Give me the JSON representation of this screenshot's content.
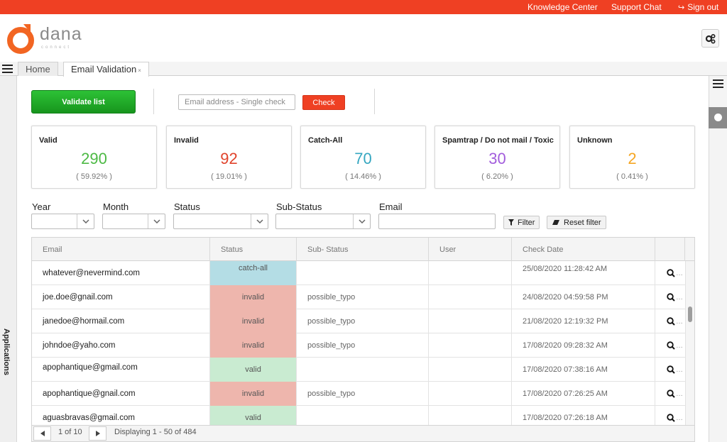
{
  "topbar": {
    "knowledge_center": "Knowledge Center",
    "support_chat": "Support Chat",
    "sign_out": "Sign out",
    "color": "#ef4023"
  },
  "logo": {
    "name": "dana",
    "tagline": "connect"
  },
  "tabs": [
    {
      "label": "Home",
      "active": false
    },
    {
      "label": "Email Validation",
      "active": true,
      "close": "×"
    }
  ],
  "sidebar": {
    "applications_label": "Applications"
  },
  "actions": {
    "validate_label": "Validate list",
    "single_placeholder": "Email address - Single check",
    "check_label": "Check"
  },
  "cards": [
    {
      "title": "Valid",
      "value": "290",
      "pct": "( 59.92% )",
      "color": "#4cb944"
    },
    {
      "title": "Invalid",
      "value": "92",
      "pct": "( 19.01% )",
      "color": "#e0432b"
    },
    {
      "title": "Catch-All",
      "value": "70",
      "pct": "( 14.46% )",
      "color": "#36a7c1"
    },
    {
      "title": "Spamtrap / Do not mail / Toxic",
      "value": "30",
      "pct": "( 6.20% )",
      "color": "#a25ddc"
    },
    {
      "title": "Unknown",
      "value": "2",
      "pct": "( 0.41% )",
      "color": "#f5a623"
    }
  ],
  "filters": {
    "year_label": "Year",
    "month_label": "Month",
    "status_label": "Status",
    "substatus_label": "Sub-Status",
    "email_label": "Email",
    "filter_button": "Filter",
    "reset_button": "Reset filter"
  },
  "grid": {
    "columns": [
      "Email",
      "Status",
      "Sub- Status",
      "User",
      "Check Date"
    ],
    "rows": [
      {
        "email": "whatever@nevermind.com",
        "status": "catch-all",
        "sub_status": "",
        "user": "",
        "date": "25/08/2020 11:28:42 AM"
      },
      {
        "email": "joe.doe@gnail.com",
        "status": "invalid",
        "sub_status": "possible_typo",
        "user": "",
        "date": "24/08/2020 04:59:58 PM"
      },
      {
        "email": "janedoe@hormail.com",
        "status": "invalid",
        "sub_status": "possible_typo",
        "user": "",
        "date": "21/08/2020 12:19:32 PM"
      },
      {
        "email": "johndoe@yaho.com",
        "status": "invalid",
        "sub_status": "possible_typo",
        "user": "",
        "date": "17/08/2020 09:28:32 AM"
      },
      {
        "email": "apophantique@gmail.com",
        "status": "valid",
        "sub_status": "",
        "user": "",
        "date": "17/08/2020 07:38:16 AM"
      },
      {
        "email": "apophantique@gnail.com",
        "status": "invalid",
        "sub_status": "possible_typo",
        "user": "",
        "date": "17/08/2020 07:26:25 AM"
      },
      {
        "email": "aguasbravas@gmail.com",
        "status": "valid",
        "sub_status": "",
        "user": "",
        "date": "17/08/2020 07:26:18 AM"
      }
    ],
    "row_action": "…",
    "status_colors": {
      "catch-all": "#b4dde5",
      "invalid": "#eeb6ad",
      "valid": "#c9ebd1"
    }
  },
  "pager": {
    "page_label": "1 of 10",
    "displaying": "Displaying 1 - 50 of 484"
  }
}
